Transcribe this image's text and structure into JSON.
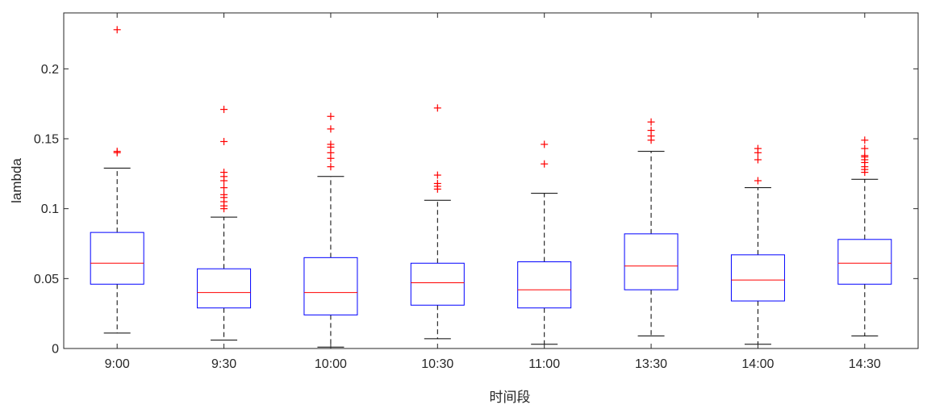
{
  "chart_data": {
    "type": "box",
    "xlabel": "时间段",
    "ylabel": "lambda",
    "ylim": [
      0,
      0.24
    ],
    "yticks": [
      0,
      0.05,
      0.1,
      0.15,
      0.2
    ],
    "ytick_labels": [
      "0",
      "0.05",
      "0.1",
      "0.15",
      "0.2"
    ],
    "grid": false,
    "categories": [
      "9:00",
      "9:30",
      "10:00",
      "10:30",
      "11:00",
      "13:30",
      "14:00",
      "14:30"
    ],
    "boxes": [
      {
        "whisker_low": 0.011,
        "q1": 0.046,
        "median": 0.061,
        "q3": 0.083,
        "whisker_high": 0.129,
        "outliers": [
          0.14,
          0.141,
          0.228
        ]
      },
      {
        "whisker_low": 0.006,
        "q1": 0.029,
        "median": 0.04,
        "q3": 0.057,
        "whisker_high": 0.094,
        "outliers": [
          0.1,
          0.102,
          0.105,
          0.108,
          0.11,
          0.115,
          0.12,
          0.123,
          0.126,
          0.148,
          0.171
        ]
      },
      {
        "whisker_low": 0.001,
        "q1": 0.024,
        "median": 0.04,
        "q3": 0.065,
        "whisker_high": 0.123,
        "outliers": [
          0.13,
          0.136,
          0.14,
          0.144,
          0.146,
          0.157,
          0.166
        ]
      },
      {
        "whisker_low": 0.007,
        "q1": 0.031,
        "median": 0.047,
        "q3": 0.061,
        "whisker_high": 0.106,
        "outliers": [
          0.114,
          0.116,
          0.118,
          0.124,
          0.172
        ]
      },
      {
        "whisker_low": 0.003,
        "q1": 0.029,
        "median": 0.042,
        "q3": 0.062,
        "whisker_high": 0.111,
        "outliers": [
          0.132,
          0.146
        ]
      },
      {
        "whisker_low": 0.009,
        "q1": 0.042,
        "median": 0.059,
        "q3": 0.082,
        "whisker_high": 0.141,
        "outliers": [
          0.149,
          0.152,
          0.156,
          0.162
        ]
      },
      {
        "whisker_low": 0.003,
        "q1": 0.034,
        "median": 0.049,
        "q3": 0.067,
        "whisker_high": 0.115,
        "outliers": [
          0.12,
          0.135,
          0.14,
          0.143
        ]
      },
      {
        "whisker_low": 0.009,
        "q1": 0.046,
        "median": 0.061,
        "q3": 0.078,
        "whisker_high": 0.121,
        "outliers": [
          0.126,
          0.128,
          0.13,
          0.133,
          0.135,
          0.137,
          0.138,
          0.143,
          0.149
        ]
      }
    ],
    "colors": {
      "box": "#0000ff",
      "median": "#ff0000",
      "whisker": "#000000",
      "outlier": "#ff0000",
      "axis": "#262626"
    }
  }
}
